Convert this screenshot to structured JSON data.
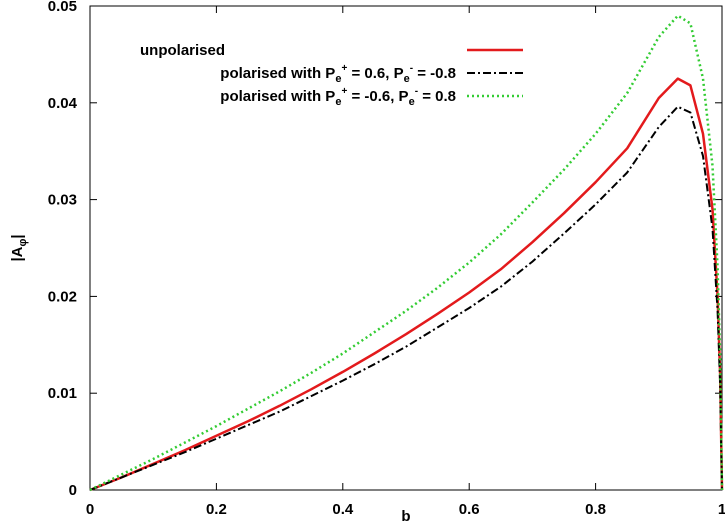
{
  "chart_data": {
    "type": "line",
    "title": "",
    "xlabel": "b",
    "ylabel": {
      "main": "|A",
      "sub": "φ",
      "end": "|"
    },
    "xlim": [
      0,
      1
    ],
    "ylim": [
      0,
      0.05
    ],
    "x_ticks": [
      0,
      0.2,
      0.4,
      0.6,
      0.8,
      1
    ],
    "x_tick_labels": [
      "0",
      "0.2",
      "0.4",
      "0.6",
      "0.8",
      "1"
    ],
    "y_ticks": [
      0,
      0.01,
      0.02,
      0.03,
      0.04,
      0.05
    ],
    "y_tick_labels": [
      "0",
      "0.01",
      "0.02",
      "0.03",
      "0.04",
      "0.05"
    ],
    "grid": false,
    "legend_position": "top-left",
    "series": [
      {
        "name": "unpolarised",
        "legend": [
          {
            "t": "unpolarised"
          }
        ],
        "color": "#e31a1c",
        "dash": "solid",
        "x": [
          0,
          0.05,
          0.1,
          0.15,
          0.2,
          0.25,
          0.3,
          0.35,
          0.4,
          0.45,
          0.5,
          0.55,
          0.6,
          0.65,
          0.7,
          0.75,
          0.8,
          0.85,
          0.9,
          0.93,
          0.95,
          0.97,
          0.985,
          0.993,
          0.997,
          1
        ],
        "y": [
          0,
          0.0013,
          0.0027,
          0.0041,
          0.0056,
          0.0071,
          0.0087,
          0.0104,
          0.0122,
          0.0141,
          0.0161,
          0.0182,
          0.0204,
          0.0228,
          0.0256,
          0.0286,
          0.0318,
          0.0353,
          0.0405,
          0.0425,
          0.0418,
          0.0368,
          0.029,
          0.02,
          0.012,
          0
        ]
      },
      {
        "name": "polarised with P_e+ = 0.6, P_e- = -0.8",
        "legend": [
          {
            "t": "polarised with P"
          },
          {
            "t": "e",
            "sub": true
          },
          {
            "t": "+",
            "subsup": true
          },
          {
            "t": " =  0.6, P"
          },
          {
            "t": "e",
            "sub": true
          },
          {
            "t": "-",
            "subsup": true
          },
          {
            "t": " = -0.8"
          }
        ],
        "color": "#000000",
        "dash": "dashdot",
        "x": [
          0,
          0.05,
          0.1,
          0.15,
          0.2,
          0.25,
          0.3,
          0.35,
          0.4,
          0.45,
          0.5,
          0.55,
          0.6,
          0.65,
          0.7,
          0.75,
          0.8,
          0.85,
          0.9,
          0.93,
          0.95,
          0.97,
          0.985,
          0.993,
          0.997,
          1
        ],
        "y": [
          0,
          0.0013,
          0.0026,
          0.0039,
          0.0053,
          0.0067,
          0.0081,
          0.0097,
          0.0113,
          0.013,
          0.0148,
          0.0168,
          0.0188,
          0.021,
          0.0236,
          0.0265,
          0.0295,
          0.0328,
          0.0375,
          0.0396,
          0.039,
          0.0345,
          0.027,
          0.0185,
          0.011,
          0
        ]
      },
      {
        "name": "polarised with P_e+ = -0.6, P_e- = 0.8",
        "legend": [
          {
            "t": "polarised with P"
          },
          {
            "t": "e",
            "sub": true
          },
          {
            "t": "+",
            "subsup": true
          },
          {
            "t": " = -0.6, P"
          },
          {
            "t": "e",
            "sub": true
          },
          {
            "t": "-",
            "subsup": true
          },
          {
            "t": " =  0.8"
          }
        ],
        "color": "#33cc33",
        "dash": "dotted",
        "x": [
          0,
          0.05,
          0.1,
          0.15,
          0.2,
          0.25,
          0.3,
          0.35,
          0.4,
          0.45,
          0.5,
          0.55,
          0.6,
          0.65,
          0.7,
          0.75,
          0.8,
          0.85,
          0.9,
          0.93,
          0.95,
          0.97,
          0.985,
          0.993,
          0.997,
          1
        ],
        "y": [
          0,
          0.0016,
          0.0032,
          0.0049,
          0.0066,
          0.0084,
          0.0102,
          0.0121,
          0.0141,
          0.0163,
          0.0185,
          0.0209,
          0.0235,
          0.0264,
          0.0297,
          0.0331,
          0.0368,
          0.041,
          0.0468,
          0.049,
          0.0482,
          0.0425,
          0.0335,
          0.023,
          0.014,
          0
        ]
      }
    ]
  }
}
